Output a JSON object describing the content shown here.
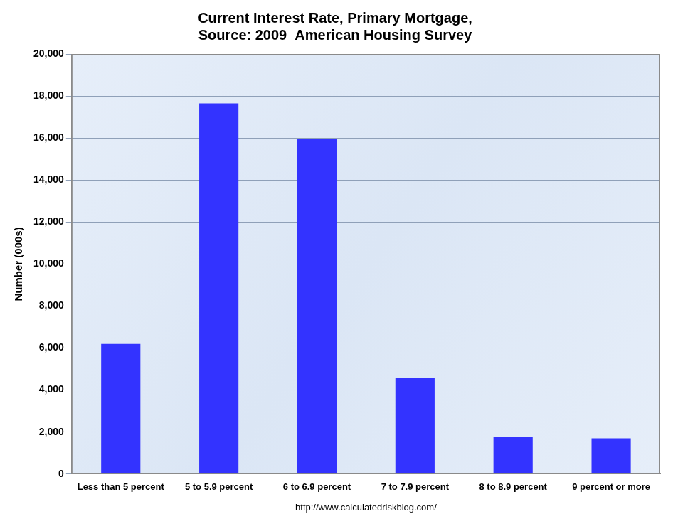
{
  "chart_data": {
    "type": "bar",
    "title": [
      "Current Interest Rate, Primary Mortgage,",
      "Source: 2009  American Housing Survey"
    ],
    "ylabel": "Number (000s)",
    "xlabel": "http://www.calculatedriskblog.com/",
    "categories": [
      "Less than 5 percent",
      "5 to 5.9 percent",
      "6 to 6.9 percent",
      "7 to 7.9 percent",
      "8 to 8.9 percent",
      "9 percent or more"
    ],
    "values": [
      6200,
      17650,
      15950,
      4600,
      1750,
      1700
    ],
    "color": "#3333ff",
    "ylim": [
      0,
      20000
    ],
    "yticks": [
      0,
      {
        "value": 2000,
        "label": "2,000"
      },
      {
        "value": 4000,
        "label": "4,000"
      },
      {
        "value": 6000,
        "label": "6,000"
      },
      {
        "value": 8000,
        "label": "8,000"
      },
      {
        "value": 10000,
        "label": "10,000"
      },
      {
        "value": 12000,
        "label": "12,000"
      },
      {
        "value": 14000,
        "label": "14,000"
      },
      {
        "value": 16000,
        "label": "16,000"
      },
      {
        "value": 18000,
        "label": "18,000"
      },
      {
        "value": 20000,
        "label": "20,000"
      }
    ],
    "grid": true
  }
}
